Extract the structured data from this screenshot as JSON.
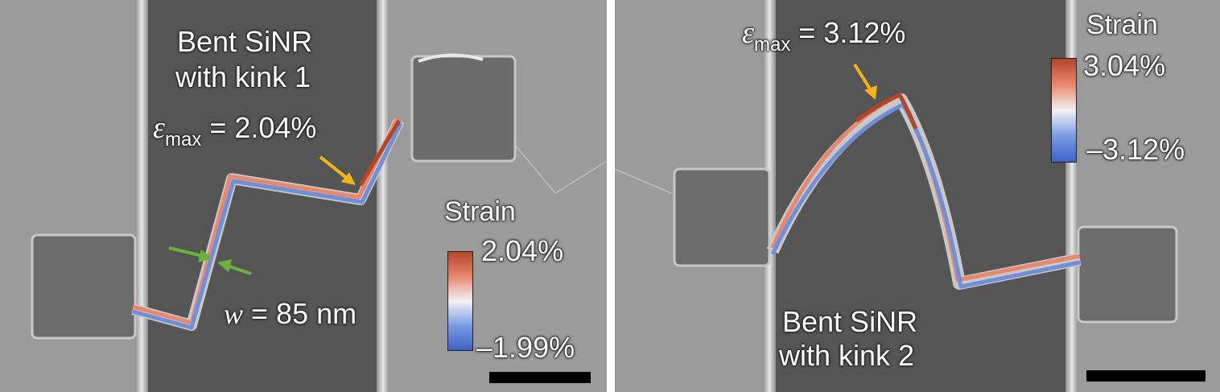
{
  "left": {
    "title_line1": "Bent SiNR",
    "title_line2": "with kink 1",
    "eps_symbol": "ε",
    "eps_sub": "max",
    "eps_value": "= 2.04%",
    "width_symbol": "w",
    "width_value": "= 85 nm",
    "colorbar_title": "Strain",
    "colorbar_max": "2.04%",
    "colorbar_min": "–1.99%"
  },
  "right": {
    "title_line1": "Bent SiNR",
    "title_line2": "with kink 2",
    "eps_symbol": "ε",
    "eps_sub": "max",
    "eps_value": "= 3.12%",
    "colorbar_title": "Strain",
    "colorbar_max": "3.04%",
    "colorbar_min": "–3.12%"
  },
  "colors": {
    "arrow_orange": "#f5b21a",
    "arrow_green": "#6ab23b",
    "strain_high": "#b2452a",
    "strain_low": "#3d63c8",
    "trench": "#555555",
    "substrate": "#9a9a9a"
  }
}
